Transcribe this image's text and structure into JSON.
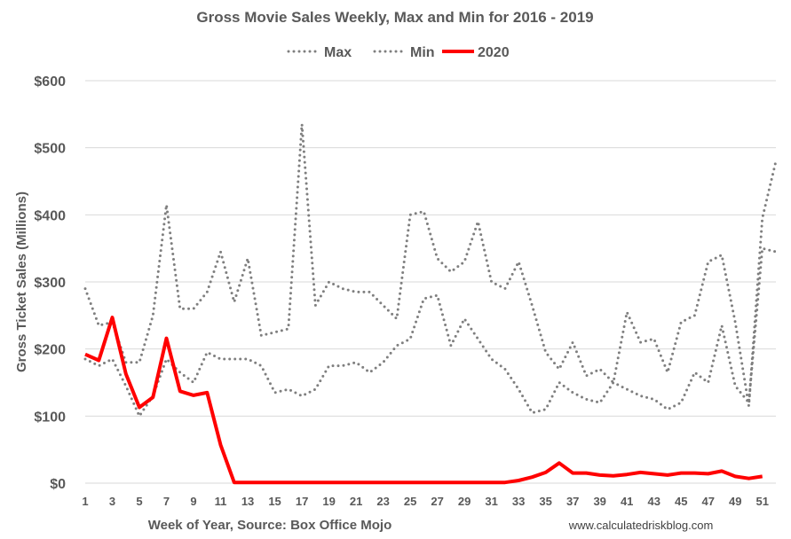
{
  "chart_data": {
    "type": "line",
    "title": "Gross Movie Sales Weekly, Max and Min for 2016 - 2019",
    "xlabel": "Week of Year, Source: Box Office Mojo",
    "ylabel": "Gross Ticket Sales (Millions)",
    "source_note": "www.calculatedriskblog.com",
    "ylim": [
      0,
      600
    ],
    "yticks": [
      0,
      100,
      200,
      300,
      400,
      500,
      600
    ],
    "ytick_labels": [
      "$0",
      "$100",
      "$200",
      "$300",
      "$400",
      "$500",
      "$600"
    ],
    "xlim": [
      1,
      52
    ],
    "xticks": [
      1,
      3,
      5,
      7,
      9,
      11,
      13,
      15,
      17,
      19,
      21,
      23,
      25,
      27,
      29,
      31,
      33,
      35,
      37,
      39,
      41,
      43,
      45,
      47,
      49,
      51
    ],
    "grid": "horizontal",
    "legend_position": "top",
    "x": [
      1,
      2,
      3,
      4,
      5,
      6,
      7,
      8,
      9,
      10,
      11,
      12,
      13,
      14,
      15,
      16,
      17,
      18,
      19,
      20,
      21,
      22,
      23,
      24,
      25,
      26,
      27,
      28,
      29,
      30,
      31,
      32,
      33,
      34,
      35,
      36,
      37,
      38,
      39,
      40,
      41,
      42,
      43,
      44,
      45,
      46,
      47,
      48,
      49,
      50,
      51,
      52
    ],
    "series": [
      {
        "name": "Max",
        "style": "dotted",
        "color": "#7f7f7f",
        "values": [
          290,
          235,
          240,
          180,
          180,
          250,
          415,
          260,
          260,
          285,
          345,
          270,
          335,
          220,
          225,
          230,
          535,
          265,
          300,
          290,
          285,
          285,
          265,
          245,
          400,
          405,
          335,
          315,
          330,
          390,
          300,
          290,
          330,
          265,
          195,
          170,
          210,
          160,
          170,
          150,
          255,
          210,
          215,
          165,
          240,
          250,
          330,
          340,
          240,
          115,
          395,
          480
        ]
      },
      {
        "name": "Min",
        "style": "dotted",
        "color": "#7f7f7f",
        "values": [
          185,
          175,
          185,
          145,
          100,
          130,
          185,
          165,
          150,
          195,
          185,
          185,
          185,
          175,
          135,
          140,
          130,
          140,
          175,
          175,
          180,
          165,
          180,
          205,
          215,
          275,
          280,
          205,
          245,
          215,
          185,
          170,
          140,
          105,
          110,
          150,
          135,
          125,
          120,
          150,
          140,
          130,
          125,
          110,
          120,
          165,
          150,
          235,
          145,
          120,
          350,
          345
        ]
      },
      {
        "name": "2020",
        "style": "solid",
        "color": "#ff0000",
        "values": [
          192,
          183,
          247,
          163,
          113,
          128,
          216,
          137,
          131,
          135,
          57,
          1,
          1,
          1,
          1,
          1,
          1,
          1,
          1,
          1,
          1,
          1,
          1,
          1,
          1,
          1,
          1,
          1,
          1,
          1,
          1,
          1,
          4,
          9,
          16,
          30,
          15,
          15,
          12,
          11,
          13,
          16,
          14,
          12,
          15,
          15,
          14,
          18,
          10,
          7,
          10,
          null
        ]
      }
    ]
  }
}
